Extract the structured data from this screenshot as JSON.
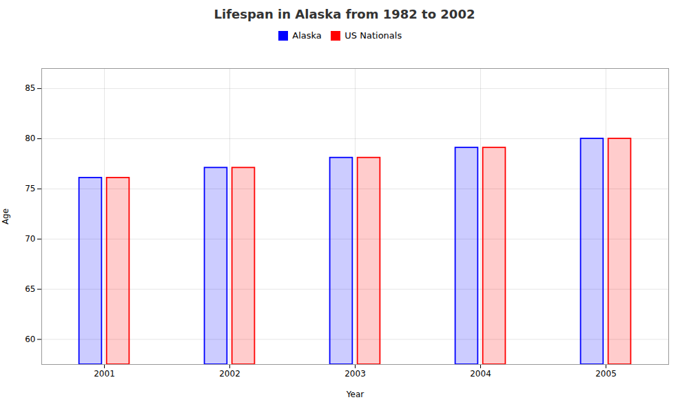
{
  "chart_data": {
    "type": "bar",
    "title": "Lifespan in Alaska from 1982 to 2002",
    "xlabel": "Year",
    "ylabel": "Age",
    "categories": [
      "2001",
      "2002",
      "2003",
      "2004",
      "2005"
    ],
    "series": [
      {
        "name": "Alaska",
        "color": "#0000ff",
        "values": [
          76.1,
          77.1,
          78.1,
          79.1,
          80.0
        ]
      },
      {
        "name": "US Nationals",
        "color": "#ff0000",
        "values": [
          76.1,
          77.1,
          78.1,
          79.1,
          80.0
        ]
      }
    ],
    "ylim": [
      57.5,
      87
    ],
    "yticks": [
      60,
      65,
      70,
      75,
      80,
      85
    ],
    "grid": true,
    "legend": "top"
  }
}
